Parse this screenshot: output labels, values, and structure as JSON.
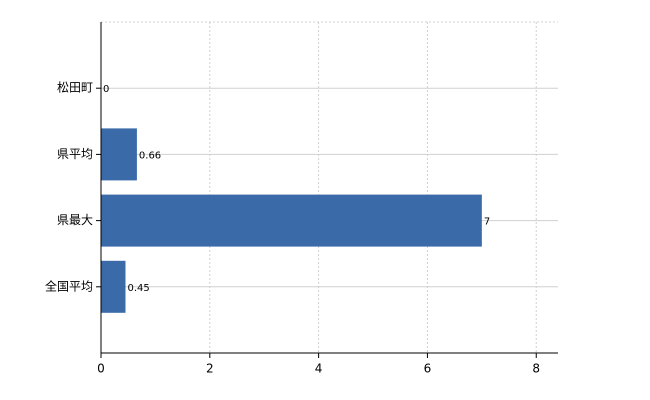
{
  "chart_data": {
    "type": "barh",
    "categories": [
      "松田町",
      "県平均",
      "県最大",
      "全国平均"
    ],
    "values": [
      0,
      0.66,
      7,
      0.45
    ],
    "color": "#3a6aa8",
    "xlim": [
      0,
      8.4
    ],
    "xticks": [
      0,
      2,
      4,
      6,
      8
    ],
    "grid": true
  }
}
